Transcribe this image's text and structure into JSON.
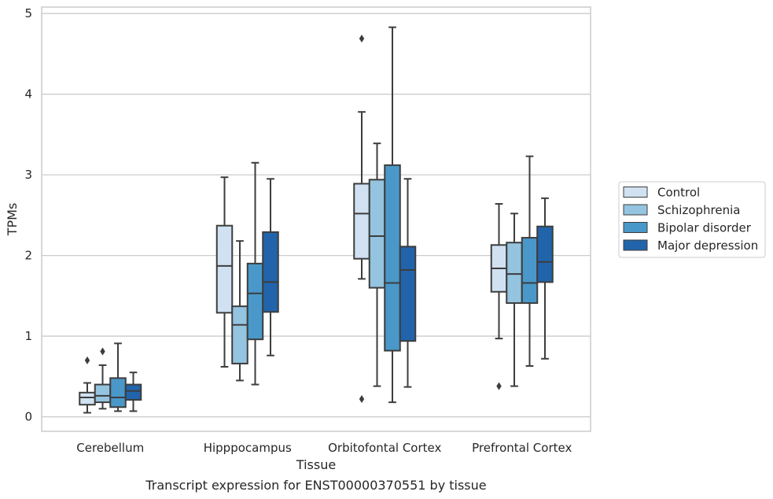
{
  "caption": "Transcript expression for ENST00000370551 by tissue",
  "chart_data": {
    "type": "box",
    "xlabel": "Tissue",
    "ylabel": "TPMs",
    "ylim": [
      -0.18,
      5.08
    ],
    "yticks": [
      0,
      1,
      2,
      3,
      4,
      5
    ],
    "grid": true,
    "legend_position": "right",
    "categories": [
      "Cerebellum",
      "Hipppocampus",
      "Orbitofontal Cortex",
      "Prefrontal Cortex"
    ],
    "series": [
      {
        "name": "Control",
        "color": "#d0e1f2",
        "boxes": [
          {
            "whislo": 0.05,
            "q1": 0.15,
            "med": 0.24,
            "q3": 0.3,
            "whishi": 0.42,
            "fliers": [
              0.7
            ]
          },
          {
            "whislo": 0.62,
            "q1": 1.29,
            "med": 1.87,
            "q3": 2.37,
            "whishi": 2.97,
            "fliers": []
          },
          {
            "whislo": 1.71,
            "q1": 1.96,
            "med": 2.52,
            "q3": 2.89,
            "whishi": 3.78,
            "fliers": [
              4.69,
              0.22
            ]
          },
          {
            "whislo": 0.97,
            "q1": 1.55,
            "med": 1.84,
            "q3": 2.13,
            "whishi": 2.64,
            "fliers": [
              0.38
            ]
          }
        ]
      },
      {
        "name": "Schizophrenia",
        "color": "#94c4df",
        "boxes": [
          {
            "whislo": 0.1,
            "q1": 0.18,
            "med": 0.26,
            "q3": 0.4,
            "whishi": 0.64,
            "fliers": [
              0.81
            ]
          },
          {
            "whislo": 0.45,
            "q1": 0.66,
            "med": 1.14,
            "q3": 1.37,
            "whishi": 2.18,
            "fliers": []
          },
          {
            "whislo": 0.38,
            "q1": 1.6,
            "med": 2.24,
            "q3": 2.94,
            "whishi": 3.39,
            "fliers": []
          },
          {
            "whislo": 0.38,
            "q1": 1.41,
            "med": 1.77,
            "q3": 2.16,
            "whishi": 2.52,
            "fliers": []
          }
        ]
      },
      {
        "name": "Bipolar disorder",
        "color": "#4a98c9",
        "boxes": [
          {
            "whislo": 0.07,
            "q1": 0.12,
            "med": 0.24,
            "q3": 0.48,
            "whishi": 0.91,
            "fliers": []
          },
          {
            "whislo": 0.4,
            "q1": 0.96,
            "med": 1.53,
            "q3": 1.9,
            "whishi": 3.15,
            "fliers": []
          },
          {
            "whislo": 0.18,
            "q1": 0.82,
            "med": 1.66,
            "q3": 3.12,
            "whishi": 4.83,
            "fliers": []
          },
          {
            "whislo": 0.63,
            "q1": 1.41,
            "med": 1.66,
            "q3": 2.22,
            "whishi": 3.23,
            "fliers": []
          }
        ]
      },
      {
        "name": "Major depression",
        "color": "#2164ab",
        "boxes": [
          {
            "whislo": 0.07,
            "q1": 0.21,
            "med": 0.32,
            "q3": 0.4,
            "whishi": 0.55,
            "fliers": []
          },
          {
            "whislo": 0.76,
            "q1": 1.3,
            "med": 1.67,
            "q3": 2.29,
            "whishi": 2.95,
            "fliers": []
          },
          {
            "whislo": 0.37,
            "q1": 0.94,
            "med": 1.82,
            "q3": 2.11,
            "whishi": 2.95,
            "fliers": []
          },
          {
            "whislo": 0.72,
            "q1": 1.67,
            "med": 1.92,
            "q3": 2.36,
            "whishi": 2.71,
            "fliers": []
          }
        ]
      }
    ]
  }
}
